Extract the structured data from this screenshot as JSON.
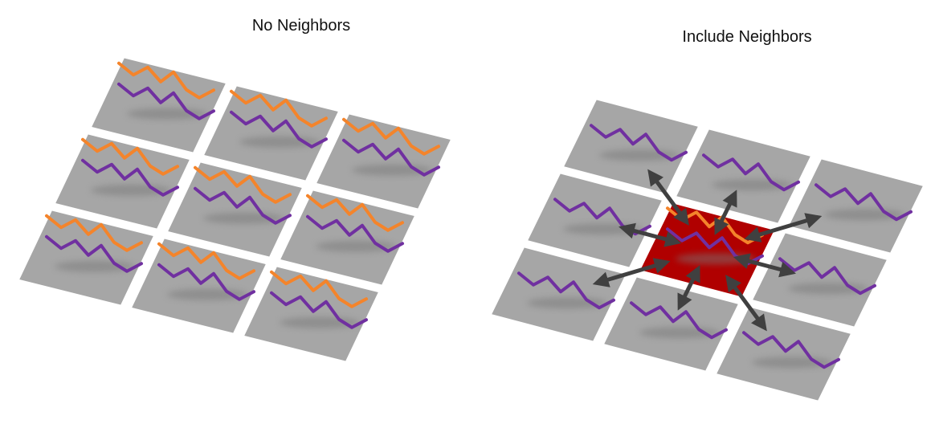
{
  "left_panel": {
    "title": "No Neighbors"
  },
  "right_panel": {
    "title": "Include Neighbors"
  }
}
